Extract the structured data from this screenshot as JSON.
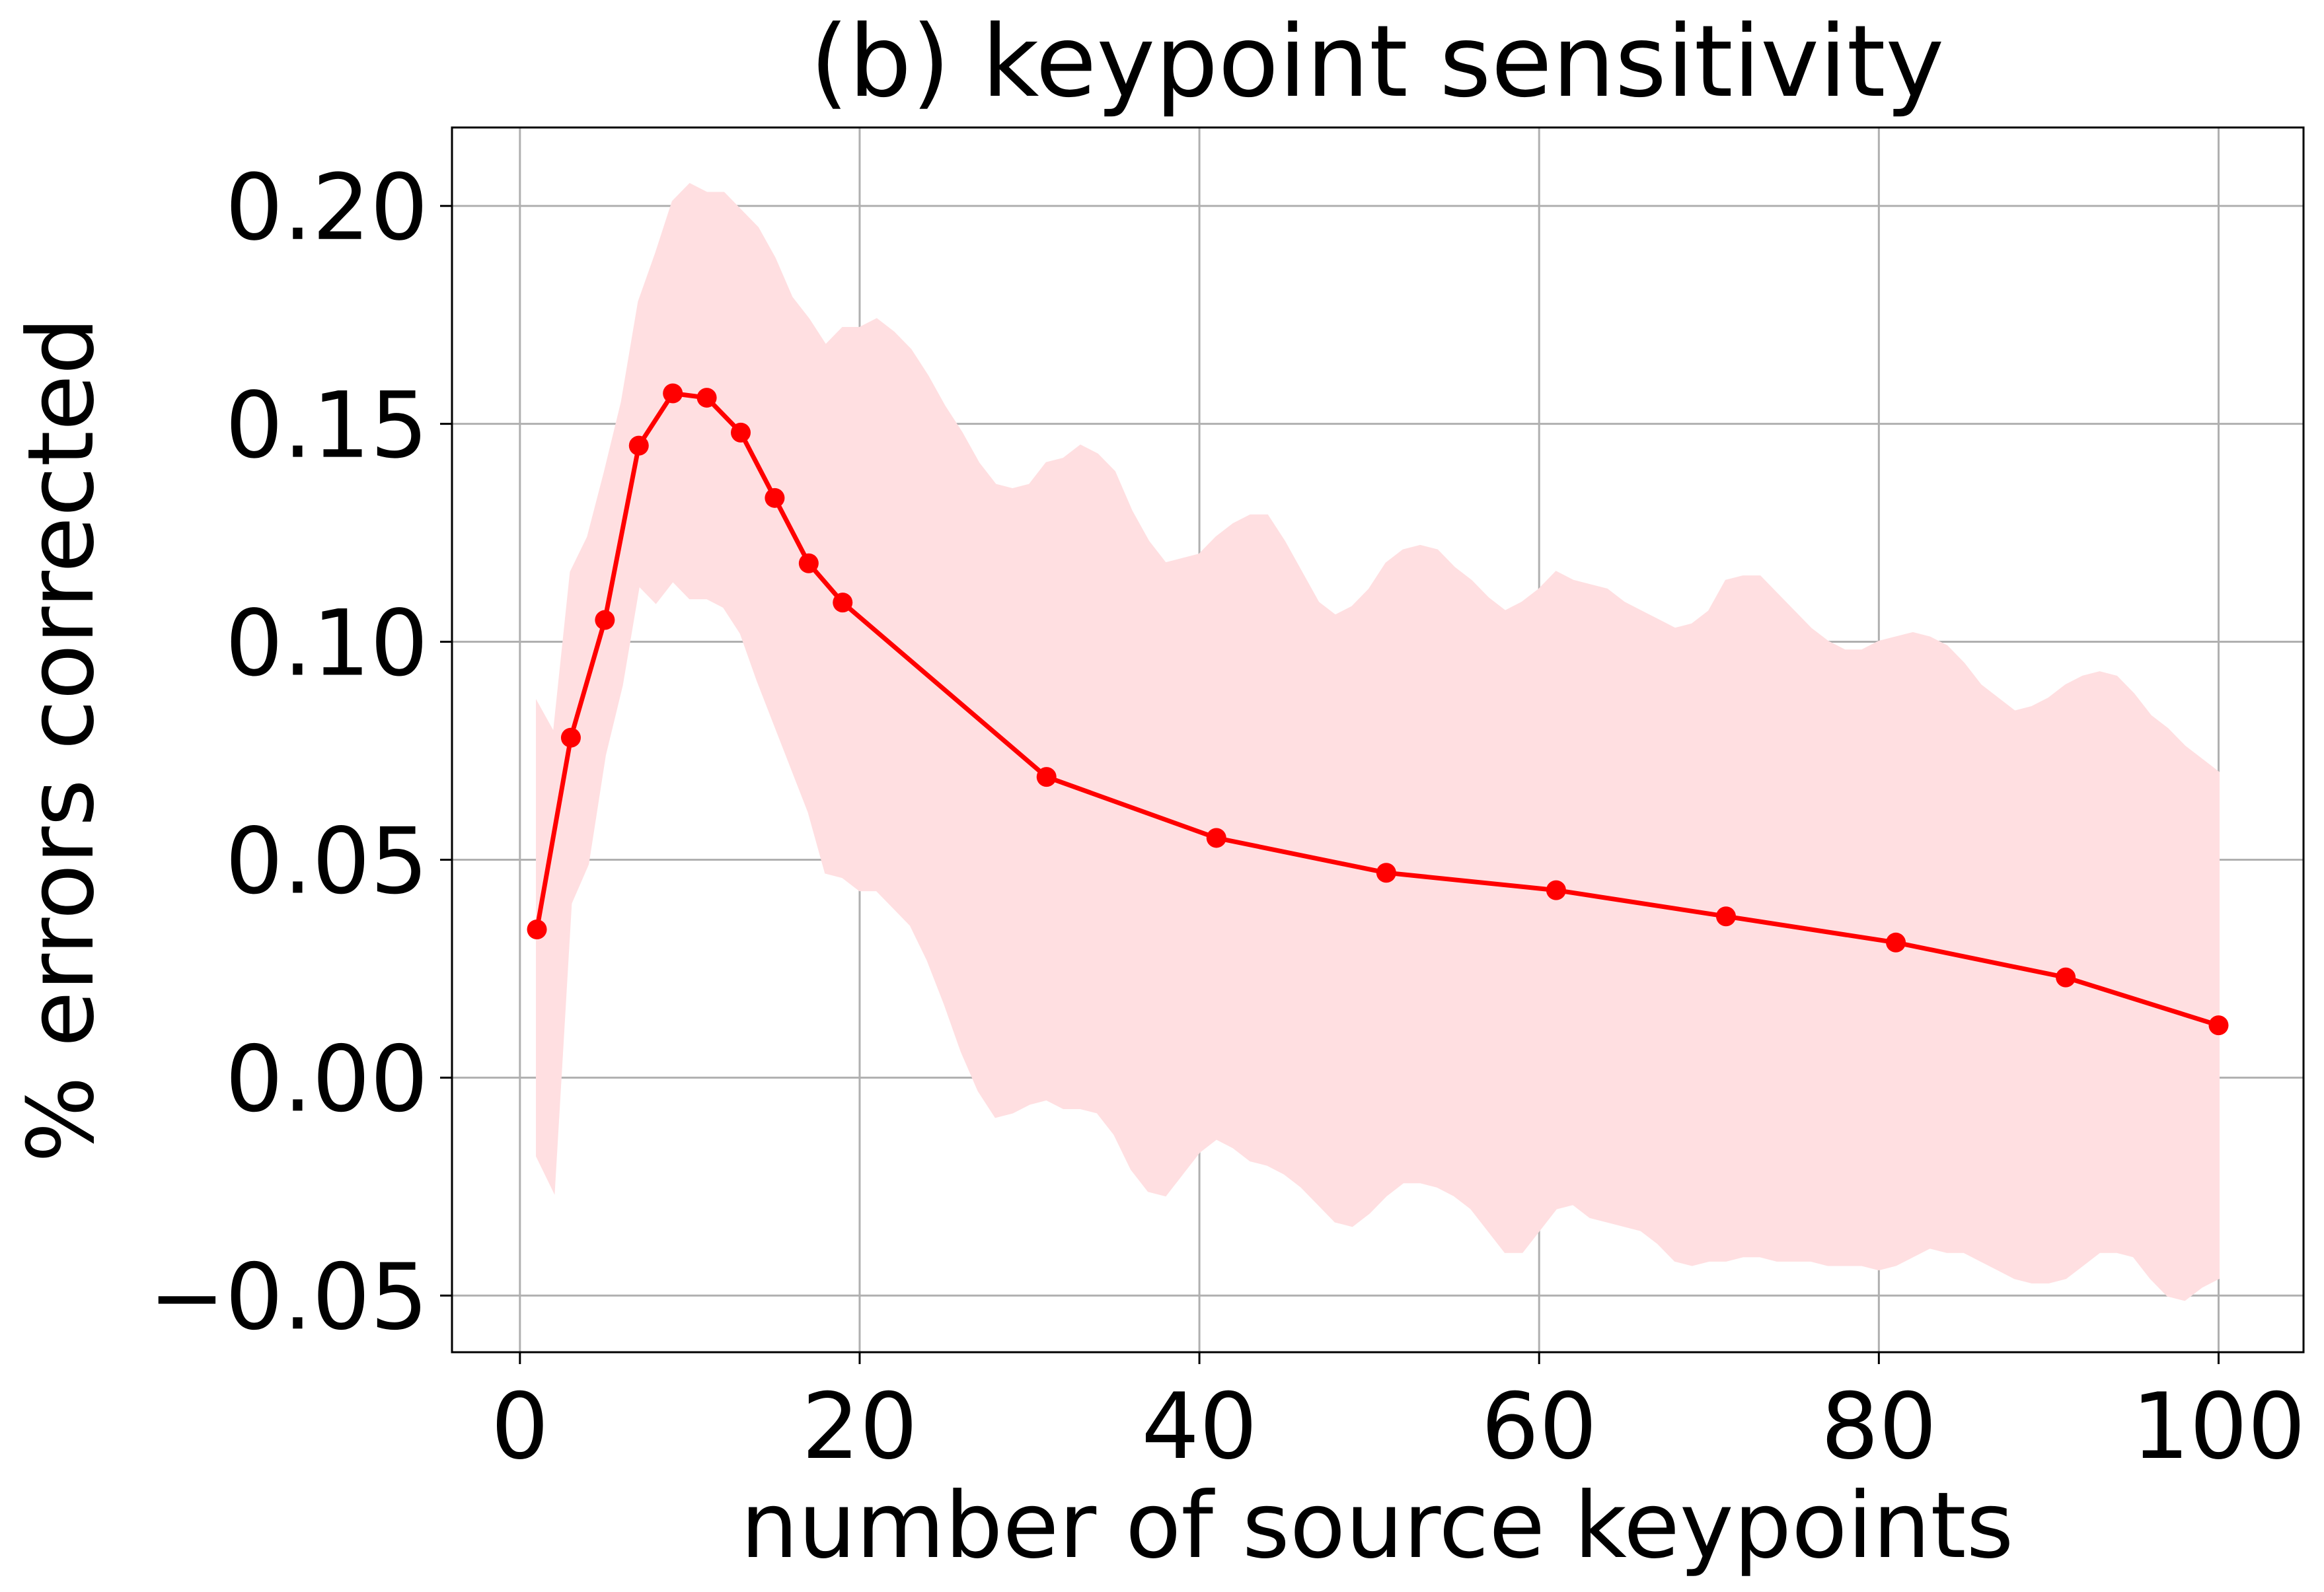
{
  "chart_data": {
    "type": "line",
    "title": "(b) keypoint sensitivity",
    "xlabel": "number of source keypoints",
    "ylabel": "% errors corrected",
    "xlim": [
      -4,
      105
    ],
    "ylim": [
      -0.063,
      0.218
    ],
    "xticks": [
      0,
      20,
      40,
      60,
      80,
      100
    ],
    "xtick_labels": [
      "0",
      "20",
      "40",
      "60",
      "80",
      "100"
    ],
    "yticks": [
      -0.05,
      0.0,
      0.05,
      0.1,
      0.15,
      0.2
    ],
    "ytick_labels": [
      "−0.05",
      "0.00",
      "0.05",
      "0.10",
      "0.15",
      "0.20"
    ],
    "grid": true,
    "series": [
      {
        "color": "#ff0000",
        "marker": "circle",
        "x": [
          1,
          3,
          5,
          7,
          9,
          11,
          13,
          15,
          17,
          19,
          31,
          41,
          51,
          61,
          71,
          81,
          91,
          100
        ],
        "y": [
          0.034,
          0.078,
          0.105,
          0.145,
          0.157,
          0.156,
          0.148,
          0.133,
          0.118,
          0.109,
          0.069,
          0.055,
          0.047,
          0.043,
          0.037,
          0.031,
          0.023,
          0.012
        ]
      }
    ],
    "band": {
      "color": "#ffdfe1",
      "x": [
        1,
        2,
        3,
        4,
        5,
        6,
        7,
        8,
        9,
        10,
        11,
        12,
        13,
        14,
        15,
        16,
        17,
        18,
        19,
        20,
        21,
        22,
        23,
        24,
        25,
        26,
        27,
        28,
        29,
        30,
        31,
        32,
        33,
        34,
        35,
        36,
        37,
        38,
        39,
        40,
        41,
        42,
        43,
        44,
        45,
        46,
        47,
        48,
        49,
        50,
        51,
        52,
        53,
        54,
        55,
        56,
        57,
        58,
        59,
        60,
        61,
        62,
        63,
        64,
        65,
        66,
        67,
        68,
        69,
        70,
        71,
        72,
        73,
        74,
        75,
        76,
        77,
        78,
        79,
        80,
        81,
        82,
        83,
        84,
        85,
        86,
        87,
        88,
        89,
        90,
        91,
        92,
        93,
        94,
        95,
        96,
        97,
        98,
        99,
        100
      ],
      "upper": [
        0.086,
        0.079,
        0.116,
        0.124,
        0.139,
        0.155,
        0.178,
        0.189,
        0.201,
        0.205,
        0.203,
        0.203,
        0.199,
        0.195,
        0.188,
        0.179,
        0.174,
        0.168,
        0.172,
        0.172,
        0.174,
        0.171,
        0.167,
        0.161,
        0.154,
        0.148,
        0.141,
        0.136,
        0.135,
        0.136,
        0.141,
        0.142,
        0.145,
        0.143,
        0.139,
        0.13,
        0.123,
        0.118,
        0.119,
        0.12,
        0.124,
        0.127,
        0.129,
        0.129,
        0.123,
        0.116,
        0.109,
        0.106,
        0.108,
        0.112,
        0.118,
        0.121,
        0.122,
        0.121,
        0.117,
        0.114,
        0.11,
        0.107,
        0.109,
        0.112,
        0.116,
        0.114,
        0.113,
        0.112,
        0.109,
        0.107,
        0.105,
        0.103,
        0.104,
        0.107,
        0.114,
        0.115,
        0.115,
        0.111,
        0.107,
        0.103,
        0.1,
        0.098,
        0.098,
        0.1,
        0.101,
        0.102,
        0.101,
        0.099,
        0.095,
        0.09,
        0.087,
        0.084,
        0.085,
        0.087,
        0.09,
        0.092,
        0.093,
        0.092,
        0.088,
        0.083,
        0.08,
        0.076,
        0.073,
        0.07
      ],
      "lower": [
        -0.018,
        -0.026,
        0.04,
        0.049,
        0.074,
        0.09,
        0.113,
        0.109,
        0.114,
        0.11,
        0.11,
        0.108,
        0.102,
        0.091,
        0.081,
        0.071,
        0.061,
        0.047,
        0.046,
        0.043,
        0.043,
        0.039,
        0.035,
        0.027,
        0.017,
        0.006,
        -0.003,
        -0.009,
        -0.008,
        -0.006,
        -0.005,
        -0.007,
        -0.007,
        -0.008,
        -0.013,
        -0.021,
        -0.026,
        -0.027,
        -0.022,
        -0.017,
        -0.014,
        -0.016,
        -0.019,
        -0.02,
        -0.022,
        -0.025,
        -0.029,
        -0.033,
        -0.034,
        -0.031,
        -0.027,
        -0.024,
        -0.024,
        -0.025,
        -0.027,
        -0.03,
        -0.035,
        -0.04,
        -0.04,
        -0.035,
        -0.03,
        -0.029,
        -0.032,
        -0.033,
        -0.034,
        -0.035,
        -0.038,
        -0.042,
        -0.043,
        -0.042,
        -0.042,
        -0.041,
        -0.041,
        -0.042,
        -0.042,
        -0.042,
        -0.043,
        -0.043,
        -0.043,
        -0.044,
        -0.043,
        -0.041,
        -0.039,
        -0.04,
        -0.04,
        -0.042,
        -0.044,
        -0.046,
        -0.047,
        -0.047,
        -0.046,
        -0.043,
        -0.04,
        -0.04,
        -0.041,
        -0.046,
        -0.05,
        -0.051,
        -0.048,
        -0.046
      ]
    }
  }
}
